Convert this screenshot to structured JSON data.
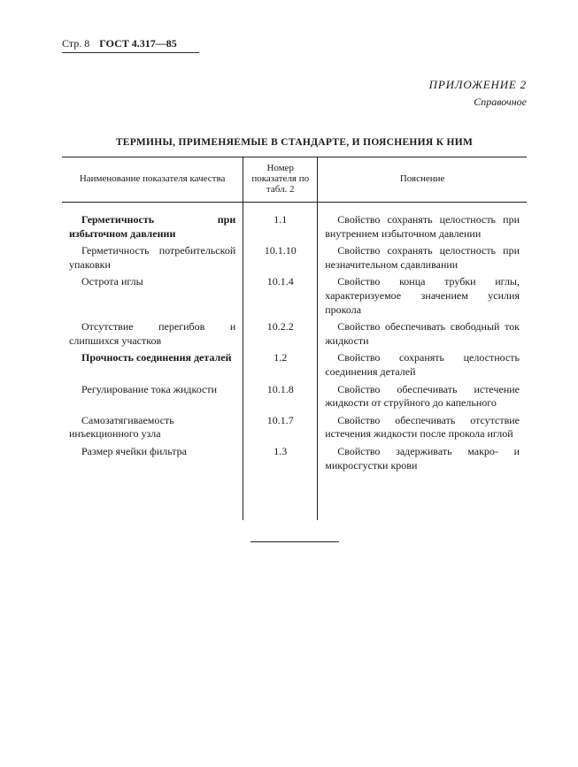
{
  "header": {
    "page_label": "Стр. 8",
    "gost": "ГОСТ 4.317—85"
  },
  "appendix": {
    "title": "ПРИЛОЖЕНИЕ 2",
    "subtitle": "Справочное"
  },
  "title": "ТЕРМИНЫ, ПРИМЕНЯЕМЫЕ В СТАНДАРТЕ, И ПОЯСНЕНИЯ К НИМ",
  "columns": {
    "name": "Наименование показателя качества",
    "num": "Номер показателя по табл. 2",
    "desc": "Пояснение"
  },
  "rows": [
    {
      "name": "Герметичность при избыточном давлении",
      "name_bold": true,
      "num": "1.1",
      "desc": "Свойство сохранять целостность при внутреннем избыточном давлении"
    },
    {
      "name": "Герметичность потребительской упаковки",
      "name_bold": false,
      "num": "10.1.10",
      "desc": "Свойство сохранять целостность при незначительном сдавливании"
    },
    {
      "name": "Острота иглы",
      "name_bold": false,
      "num": "10.1.4",
      "desc": "Свойство конца трубки иглы, характеризуемое значением усилия прокола"
    },
    {
      "name": "Отсутствие перегибов и слипшихся участков",
      "name_bold": false,
      "num": "10.2.2",
      "desc": "Свойство обеспечивать свободный ток жидкости"
    },
    {
      "name": "Прочность соединения деталей",
      "name_bold": true,
      "num": "1.2",
      "desc": "Свойство сохранять целостность соединения деталей"
    },
    {
      "name": "Регулирование тока жидкости",
      "name_bold": false,
      "num": "10.1.8",
      "desc": "Свойство обеспечивать истечение жидкости от струйного до капельного"
    },
    {
      "name": "Самозатягиваемость инъекционного узла",
      "name_bold": false,
      "num": "10.1.7",
      "desc": "Свойство обеспечивать отсутствие истечения жидкости после прокола иглой"
    },
    {
      "name": "Размер ячейки фильтра",
      "name_bold": false,
      "num": "1.3",
      "desc": "Свойство задерживать макро- и микросгустки крови"
    }
  ]
}
